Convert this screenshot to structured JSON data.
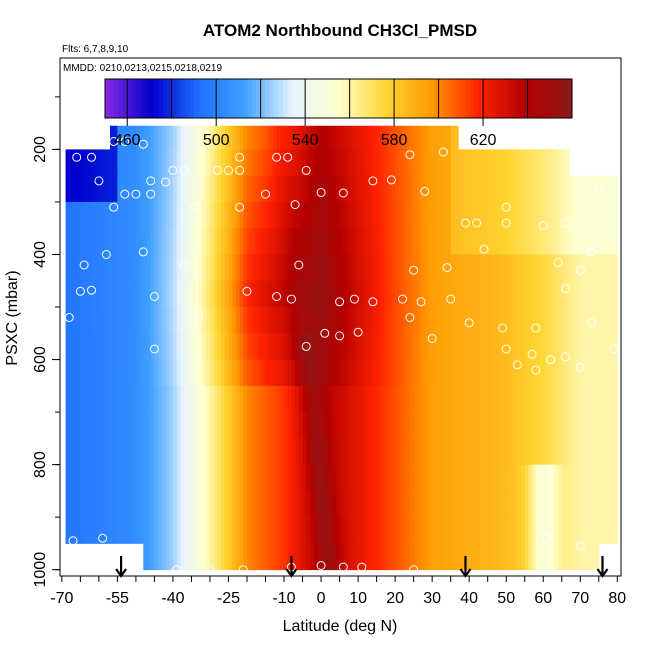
{
  "chart_data": {
    "type": "heatmap",
    "title": "ATOM2 Northbound CH3Cl_PMSD",
    "flights_note": "Flts: 6,7,8,9,10",
    "dates_note": "MMDD: 0210,0213,0215,0218,0219",
    "xlabel": "Latitude (deg N)",
    "ylabel": "PSXC (mbar)",
    "xlim": [
      -70,
      82
    ],
    "ylim": [
      1010,
      100
    ],
    "x_ticks": [
      -70,
      -55,
      -40,
      -25,
      -10,
      0,
      10,
      20,
      30,
      40,
      50,
      60,
      70,
      80
    ],
    "y_ticks": [
      200,
      400,
      600,
      800,
      1000
    ],
    "colorbar": {
      "min": 450,
      "max": 660,
      "ticks": [
        460,
        500,
        540,
        580,
        620
      ],
      "colors": [
        "#8a2be2",
        "#0000cd",
        "#1e6fff",
        "#3fa0ff",
        "#e6f4ff",
        "#ffffcc",
        "#ffd633",
        "#ff9900",
        "#ff2200",
        "#b30000",
        "#8b1a1a"
      ]
    },
    "profile_markers_lat": [
      -54,
      -8,
      39,
      76
    ],
    "field": {
      "description_levels_mbar": [
        180,
        225,
        275,
        325,
        375,
        425,
        475,
        525,
        575,
        625,
        675,
        725,
        775,
        825,
        875,
        925,
        975
      ],
      "anchors": [
        {
          "lat": -68,
          "value": 495
        },
        {
          "lat": -50,
          "value": 505
        },
        {
          "lat": -40,
          "value": 525
        },
        {
          "lat": -30,
          "value": 560
        },
        {
          "lat": -20,
          "value": 600
        },
        {
          "lat": -10,
          "value": 615
        },
        {
          "lat": 0,
          "value": 640
        },
        {
          "lat": 10,
          "value": 625
        },
        {
          "lat": 20,
          "value": 610
        },
        {
          "lat": 30,
          "value": 595
        },
        {
          "lat": 40,
          "value": 590
        },
        {
          "lat": 50,
          "value": 585
        },
        {
          "lat": 60,
          "value": 575
        },
        {
          "lat": 70,
          "value": 560
        },
        {
          "lat": 80,
          "value": 560
        }
      ]
    },
    "observations": [
      {
        "lat": -56,
        "p": 185
      },
      {
        "lat": -53,
        "p": 185
      },
      {
        "lat": -48,
        "p": 190
      },
      {
        "lat": -66,
        "p": 215
      },
      {
        "lat": -62,
        "p": 215
      },
      {
        "lat": -22,
        "p": 215
      },
      {
        "lat": -12,
        "p": 215
      },
      {
        "lat": -9,
        "p": 215
      },
      {
        "lat": 24,
        "p": 210
      },
      {
        "lat": 33,
        "p": 205
      },
      {
        "lat": -40,
        "p": 240
      },
      {
        "lat": -37,
        "p": 240
      },
      {
        "lat": -28,
        "p": 240
      },
      {
        "lat": -25,
        "p": 240
      },
      {
        "lat": -22,
        "p": 240
      },
      {
        "lat": -4,
        "p": 240
      },
      {
        "lat": -60,
        "p": 260
      },
      {
        "lat": -46,
        "p": 260
      },
      {
        "lat": -42,
        "p": 262
      },
      {
        "lat": 14,
        "p": 260
      },
      {
        "lat": 19,
        "p": 258
      },
      {
        "lat": -53,
        "p": 285
      },
      {
        "lat": -50,
        "p": 285
      },
      {
        "lat": -46,
        "p": 285
      },
      {
        "lat": -15,
        "p": 285
      },
      {
        "lat": 0,
        "p": 282
      },
      {
        "lat": 6,
        "p": 283
      },
      {
        "lat": 28,
        "p": 280
      },
      {
        "lat": 75,
        "p": 275
      },
      {
        "lat": -56,
        "p": 310
      },
      {
        "lat": -34,
        "p": 310
      },
      {
        "lat": -22,
        "p": 310
      },
      {
        "lat": -7,
        "p": 305
      },
      {
        "lat": 50,
        "p": 310
      },
      {
        "lat": 39,
        "p": 340
      },
      {
        "lat": 42,
        "p": 340
      },
      {
        "lat": 50,
        "p": 340
      },
      {
        "lat": 60,
        "p": 345
      },
      {
        "lat": 66,
        "p": 340
      },
      {
        "lat": 74,
        "p": 340
      },
      {
        "lat": -58,
        "p": 400
      },
      {
        "lat": -48,
        "p": 395
      },
      {
        "lat": 44,
        "p": 390
      },
      {
        "lat": 73,
        "p": 395
      },
      {
        "lat": -64,
        "p": 420
      },
      {
        "lat": -37,
        "p": 420
      },
      {
        "lat": -6,
        "p": 420
      },
      {
        "lat": 25,
        "p": 430
      },
      {
        "lat": 34,
        "p": 425
      },
      {
        "lat": 64,
        "p": 415
      },
      {
        "lat": 70,
        "p": 430
      },
      {
        "lat": -65,
        "p": 470
      },
      {
        "lat": -62,
        "p": 468
      },
      {
        "lat": -45,
        "p": 480
      },
      {
        "lat": -20,
        "p": 470
      },
      {
        "lat": -12,
        "p": 480
      },
      {
        "lat": -8,
        "p": 485
      },
      {
        "lat": 5,
        "p": 490
      },
      {
        "lat": 9,
        "p": 485
      },
      {
        "lat": 14,
        "p": 490
      },
      {
        "lat": 22,
        "p": 485
      },
      {
        "lat": 27,
        "p": 490
      },
      {
        "lat": 35,
        "p": 485
      },
      {
        "lat": 66,
        "p": 465
      },
      {
        "lat": -68,
        "p": 520
      },
      {
        "lat": -33,
        "p": 520
      },
      {
        "lat": 24,
        "p": 520
      },
      {
        "lat": 40,
        "p": 530
      },
      {
        "lat": 49,
        "p": 540
      },
      {
        "lat": 58,
        "p": 540
      },
      {
        "lat": 73,
        "p": 530
      },
      {
        "lat": -45,
        "p": 580
      },
      {
        "lat": -4,
        "p": 575
      },
      {
        "lat": 1,
        "p": 550
      },
      {
        "lat": 5,
        "p": 555
      },
      {
        "lat": 10,
        "p": 548
      },
      {
        "lat": 30,
        "p": 560
      },
      {
        "lat": 50,
        "p": 580
      },
      {
        "lat": 57,
        "p": 590
      },
      {
        "lat": 62,
        "p": 600
      },
      {
        "lat": 66,
        "p": 595
      },
      {
        "lat": 79,
        "p": 580
      },
      {
        "lat": 53,
        "p": 610
      },
      {
        "lat": 58,
        "p": 620
      },
      {
        "lat": 70,
        "p": 615
      },
      {
        "lat": 61,
        "p": 940
      },
      {
        "lat": 70,
        "p": 955
      },
      {
        "lat": -67,
        "p": 945
      },
      {
        "lat": -59,
        "p": 940
      },
      {
        "lat": -39,
        "p": 1000
      },
      {
        "lat": -30,
        "p": 1000
      },
      {
        "lat": -21,
        "p": 1000
      },
      {
        "lat": -8,
        "p": 995
      },
      {
        "lat": 0,
        "p": 992
      },
      {
        "lat": 6,
        "p": 995
      },
      {
        "lat": 11,
        "p": 995
      },
      {
        "lat": 25,
        "p": 1000
      }
    ]
  }
}
